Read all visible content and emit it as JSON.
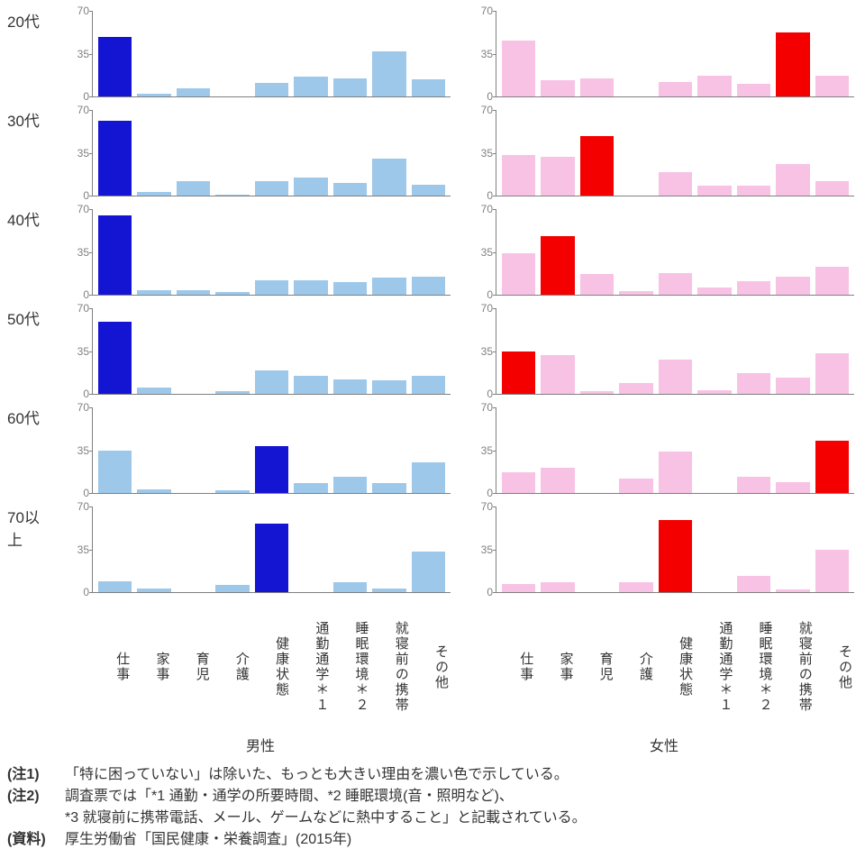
{
  "chart": {
    "type": "bar-small-multiples",
    "ymax": 70,
    "yticks": [
      0,
      35,
      70
    ],
    "background_color": "#ffffff",
    "axis_color": "#808080",
    "ytick_fontsize": 12,
    "row_label_fontsize": 17,
    "xlabel_fontsize": 15,
    "gender_fontsize": 16,
    "bar_width_ratio": 0.82,
    "male_light": "#9dc8ea",
    "male_highlight": "#1414d3",
    "female_light": "#f8c2e5",
    "female_highlight": "#f40000",
    "row_labels": [
      "20代",
      "30代",
      "40代",
      "50代",
      "60代",
      "70以上"
    ],
    "gender_labels": [
      "男性",
      "女性"
    ],
    "category_labels": [
      "仕事",
      "家事",
      "育児",
      "介護",
      "健康状態",
      "通勤通学＊１",
      "睡眠環境＊２",
      "就寝前の携帯",
      "その他"
    ],
    "panels": {
      "male": [
        {
          "values": [
            49,
            2,
            7,
            0,
            11,
            16,
            15,
            37,
            14
          ],
          "highlight_index": 0
        },
        {
          "values": [
            61,
            3,
            12,
            1,
            12,
            15,
            10,
            30,
            9
          ],
          "highlight_index": 0
        },
        {
          "values": [
            65,
            4,
            4,
            2,
            12,
            12,
            10,
            14,
            15
          ],
          "highlight_index": 0
        },
        {
          "values": [
            59,
            5,
            0,
            2,
            19,
            15,
            12,
            11,
            15
          ],
          "highlight_index": 0
        },
        {
          "values": [
            35,
            3,
            0,
            2,
            38,
            8,
            13,
            8,
            25
          ],
          "highlight_index": 4
        },
        {
          "values": [
            9,
            3,
            0,
            6,
            56,
            0,
            8,
            3,
            33
          ],
          "highlight_index": 4
        }
      ],
      "female": [
        {
          "values": [
            46,
            13,
            15,
            0,
            12,
            17,
            10,
            52,
            17
          ],
          "highlight_index": 7
        },
        {
          "values": [
            33,
            32,
            49,
            0,
            19,
            8,
            8,
            26,
            12
          ],
          "highlight_index": 2
        },
        {
          "values": [
            34,
            48,
            17,
            3,
            18,
            6,
            11,
            15,
            23
          ],
          "highlight_index": 1
        },
        {
          "values": [
            35,
            32,
            2,
            9,
            28,
            3,
            17,
            13,
            33
          ],
          "highlight_index": 0
        },
        {
          "values": [
            17,
            21,
            0,
            12,
            34,
            0,
            13,
            9,
            43
          ],
          "highlight_index": 8
        },
        {
          "values": [
            7,
            8,
            0,
            8,
            59,
            0,
            13,
            2,
            35
          ],
          "highlight_index": 4
        }
      ]
    }
  },
  "notes": {
    "n1_tag": "(注1)",
    "n1_text": "「特に困っていない」は除いた、もっとも大きい理由を濃い色で示している。",
    "n2_tag": "(注2)",
    "n2_text": "調査票では「*1 通勤・通学の所要時間、*2 睡眠環境(音・照明など)、",
    "n2_text2": "*3 就寝前に携帯電話、メール、ゲームなどに熱中すること」と記載されている。",
    "src_tag": "(資料)",
    "src_text": "厚生労働省「国民健康・栄養調査」(2015年)"
  }
}
